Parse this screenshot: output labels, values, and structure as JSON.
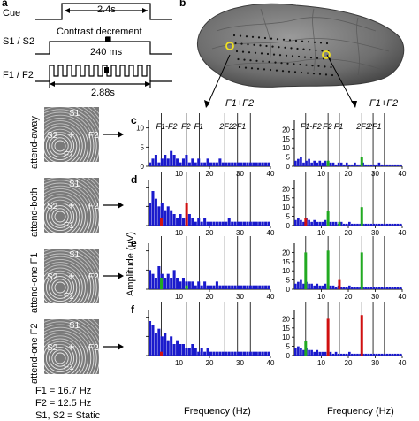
{
  "panel_a": {
    "letter": "a",
    "cue_label": "Cue",
    "cue_duration": "2.4s",
    "contrast_label": "S1 / S2",
    "contrast_title": "Contrast decrement",
    "contrast_duration": "240 ms",
    "flicker_label": "F1 / F2",
    "flicker_duration": "2.88s"
  },
  "panel_b": {
    "letter": "b"
  },
  "stimuli": [
    {
      "condition": "attend-away",
      "s1": "S1",
      "s2": "S2",
      "f1": "F1",
      "f2": "F2",
      "red": [
        "s1",
        "s2"
      ]
    },
    {
      "condition": "attend-both",
      "s1": "S1",
      "s2": "S2",
      "f1": "F1",
      "f2": "F2",
      "red": [
        "f1",
        "f2"
      ]
    },
    {
      "condition": "attend-one F1",
      "s1": "S1",
      "s2": "S2",
      "f1": "F1",
      "f2": "F2",
      "red": [
        "f1"
      ]
    },
    {
      "condition": "attend-one F2",
      "s1": "S1",
      "s2": "S2",
      "f1": "F1",
      "f2": "F2",
      "red": [
        "f2"
      ]
    }
  ],
  "freq_legend": {
    "f1": "F1 = 16.7 Hz",
    "f2": "F2 = 12.5 Hz",
    "static": "S1, S2 = Static"
  },
  "spectra": {
    "ylabel": "Amplitude (μV)",
    "xlabel": "Frequency (Hz)",
    "col_headers_left": [
      "F1-F2",
      "F2",
      "F1",
      "2F2",
      "2F1"
    ],
    "col_headers_right": [
      "F1-F2",
      "F2",
      "F1",
      "2F2",
      "2F1"
    ],
    "sum_label": "F1+F2",
    "row_letters": [
      "c",
      "d",
      "e",
      "f"
    ],
    "left_x_ticks": [
      "10",
      "20",
      "30",
      "40"
    ],
    "left_y_ticks": [
      "10",
      "5",
      "0"
    ],
    "right_x_ticks": [
      "10",
      "20",
      "30",
      "40"
    ],
    "right_y_ticks": [
      "20",
      "15",
      "10",
      "5",
      "0"
    ]
  },
  "chart_data": [
    {
      "type": "bar",
      "panel": "c-left",
      "x_range": [
        0,
        40
      ],
      "ylim": [
        0,
        12
      ],
      "lines_at": [
        4.2,
        12.5,
        16.7,
        25,
        29.2,
        33.4
      ],
      "highlight": [],
      "series": [
        {
          "color": "#1a1acc",
          "values": [
            1,
            2,
            3,
            1,
            2,
            3,
            2,
            4,
            3,
            2,
            1,
            2,
            3,
            1,
            2,
            1,
            2,
            1,
            1,
            2,
            1,
            1,
            1,
            2,
            1,
            1,
            1,
            1,
            1,
            1,
            1,
            1,
            1,
            1,
            1,
            1,
            1,
            1,
            1,
            1
          ]
        }
      ]
    },
    {
      "type": "bar",
      "panel": "c-right",
      "x_range": [
        0,
        40
      ],
      "ylim": [
        0,
        25
      ],
      "lines_at": [
        4.2,
        12.5,
        16.7,
        25,
        29.2,
        33.4
      ],
      "highlight": [
        {
          "x": 12.5,
          "value": 3,
          "color": "#22aa22"
        },
        {
          "x": 25,
          "value": 5,
          "color": "#22aa22"
        }
      ],
      "series": [
        {
          "color": "#1a1acc",
          "values": [
            3,
            4,
            5,
            2,
            3,
            4,
            2,
            3,
            2,
            3,
            2,
            3,
            2,
            2,
            2,
            1,
            2,
            2,
            1,
            2,
            1,
            1,
            2,
            1,
            1,
            2,
            1,
            1,
            1,
            1,
            1,
            2,
            1,
            1,
            1,
            1,
            1,
            1,
            1,
            1
          ]
        }
      ]
    },
    {
      "type": "bar",
      "panel": "d-left",
      "x_range": [
        0,
        40
      ],
      "ylim": [
        0,
        12
      ],
      "lines_at": [
        4.2,
        12.5,
        16.7,
        25,
        29.2,
        33.4
      ],
      "highlight": [
        {
          "x": 4.2,
          "value": 2,
          "color": "#d01010"
        },
        {
          "x": 12.5,
          "value": 6,
          "color": "#d01010"
        }
      ],
      "series": [
        {
          "color": "#1a1acc",
          "values": [
            6,
            9,
            7,
            5,
            6,
            4,
            5,
            4,
            3,
            2,
            3,
            2,
            2,
            3,
            2,
            1,
            2,
            1,
            2,
            1,
            1,
            1,
            1,
            1,
            1,
            1,
            2,
            1,
            1,
            1,
            1,
            1,
            1,
            1,
            1,
            1,
            1,
            1,
            1,
            1
          ]
        }
      ]
    },
    {
      "type": "bar",
      "panel": "d-right",
      "x_range": [
        0,
        40
      ],
      "ylim": [
        0,
        25
      ],
      "lines_at": [
        4.2,
        12.5,
        16.7,
        25,
        29.2,
        33.4
      ],
      "highlight": [
        {
          "x": 4.2,
          "value": 4,
          "color": "#d01010"
        },
        {
          "x": 12.5,
          "value": 8,
          "color": "#22aa22"
        },
        {
          "x": 16.7,
          "value": 2,
          "color": "#22aa22"
        },
        {
          "x": 25,
          "value": 10,
          "color": "#22aa22"
        }
      ],
      "series": [
        {
          "color": "#1a1acc",
          "values": [
            3,
            4,
            3,
            2,
            4,
            3,
            2,
            3,
            2,
            2,
            2,
            3,
            2,
            2,
            2,
            2,
            1,
            2,
            1,
            1,
            2,
            1,
            1,
            1,
            1,
            1,
            1,
            1,
            1,
            1,
            1,
            1,
            1,
            1,
            1,
            1,
            1,
            1,
            1,
            1
          ]
        }
      ]
    },
    {
      "type": "bar",
      "panel": "e-left",
      "x_range": [
        0,
        40
      ],
      "ylim": [
        0,
        12
      ],
      "lines_at": [
        4.2,
        12.5,
        16.7,
        25,
        29.2,
        33.4
      ],
      "highlight": [
        {
          "x": 4.2,
          "value": 3,
          "color": "#22aa22"
        },
        {
          "x": 12.5,
          "value": 1,
          "color": "#22aa22"
        }
      ],
      "series": [
        {
          "color": "#1a1acc",
          "values": [
            5,
            4,
            3,
            6,
            4,
            3,
            4,
            3,
            5,
            3,
            2,
            3,
            2,
            2,
            2,
            1,
            2,
            1,
            2,
            1,
            1,
            1,
            2,
            1,
            1,
            1,
            1,
            1,
            1,
            1,
            1,
            1,
            1,
            1,
            1,
            1,
            1,
            1,
            1,
            1
          ]
        }
      ]
    },
    {
      "type": "bar",
      "panel": "e-right",
      "x_range": [
        0,
        40
      ],
      "ylim": [
        0,
        25
      ],
      "lines_at": [
        4.2,
        12.5,
        16.7,
        25,
        29.2,
        33.4
      ],
      "highlight": [
        {
          "x": 4.2,
          "value": 20,
          "color": "#22aa22"
        },
        {
          "x": 12.5,
          "value": 21,
          "color": "#22aa22"
        },
        {
          "x": 16.7,
          "value": 5,
          "color": "#d01010"
        },
        {
          "x": 25,
          "value": 20,
          "color": "#22aa22"
        }
      ],
      "series": [
        {
          "color": "#1a1acc",
          "values": [
            3,
            4,
            5,
            3,
            4,
            3,
            3,
            2,
            3,
            2,
            2,
            3,
            2,
            2,
            2,
            1,
            2,
            1,
            1,
            1,
            2,
            1,
            1,
            1,
            1,
            1,
            1,
            1,
            1,
            1,
            1,
            1,
            1,
            1,
            1,
            1,
            1,
            1,
            1,
            1
          ]
        }
      ]
    },
    {
      "type": "bar",
      "panel": "f-left",
      "x_range": [
        0,
        40
      ],
      "ylim": [
        0,
        12
      ],
      "lines_at": [
        4.2,
        12.5,
        16.7,
        25,
        29.2,
        33.4
      ],
      "highlight": [
        {
          "x": 4.2,
          "value": 1,
          "color": "#d01010"
        }
      ],
      "series": [
        {
          "color": "#1a1acc",
          "values": [
            9,
            8,
            6,
            7,
            5,
            6,
            4,
            5,
            3,
            4,
            3,
            3,
            2,
            2,
            3,
            2,
            1,
            2,
            1,
            2,
            1,
            1,
            1,
            1,
            1,
            1,
            1,
            1,
            1,
            1,
            1,
            1,
            1,
            1,
            1,
            1,
            1,
            1,
            1,
            1
          ]
        }
      ]
    },
    {
      "type": "bar",
      "panel": "f-right",
      "x_range": [
        0,
        40
      ],
      "ylim": [
        0,
        25
      ],
      "lines_at": [
        4.2,
        12.5,
        16.7,
        25,
        29.2,
        33.4
      ],
      "highlight": [
        {
          "x": 4.2,
          "value": 8,
          "color": "#22aa22"
        },
        {
          "x": 12.5,
          "value": 20,
          "color": "#d01010"
        },
        {
          "x": 25,
          "value": 22,
          "color": "#d01010"
        }
      ],
      "series": [
        {
          "color": "#1a1acc",
          "values": [
            4,
            5,
            4,
            3,
            4,
            3,
            3,
            2,
            3,
            2,
            2,
            2,
            2,
            2,
            1,
            2,
            1,
            1,
            1,
            1,
            2,
            1,
            1,
            1,
            1,
            1,
            1,
            1,
            1,
            1,
            1,
            1,
            1,
            1,
            1,
            1,
            1,
            1,
            1,
            1
          ]
        }
      ]
    }
  ]
}
